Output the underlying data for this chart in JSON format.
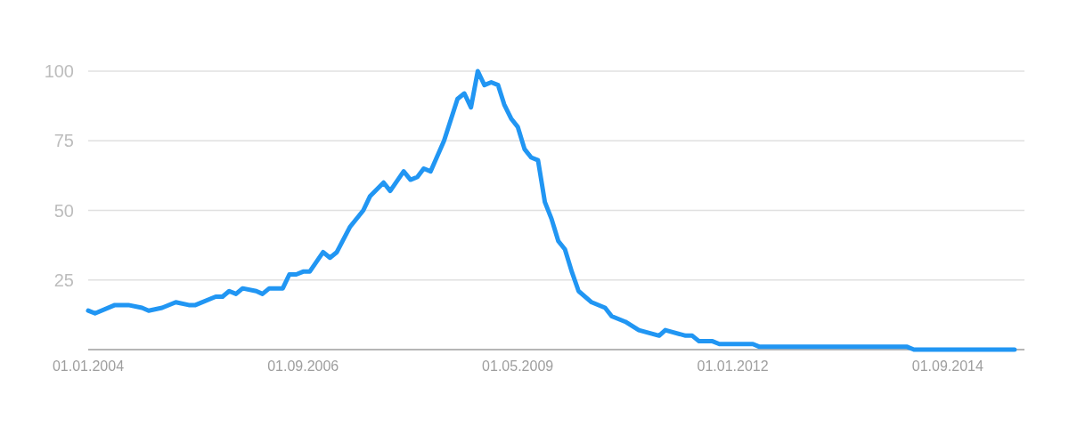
{
  "chart_data": {
    "type": "line",
    "x": [
      "2004-01",
      "2004-02",
      "2004-05",
      "2004-07",
      "2004-09",
      "2004-10",
      "2004-12",
      "2005-02",
      "2005-04",
      "2005-05",
      "2005-08",
      "2005-09",
      "2005-10",
      "2005-11",
      "2005-12",
      "2006-02",
      "2006-03",
      "2006-04",
      "2006-06",
      "2006-07",
      "2006-08",
      "2006-09",
      "2006-10",
      "2006-12",
      "2007-01",
      "2007-02",
      "2007-04",
      "2007-06",
      "2007-07",
      "2007-09",
      "2007-10",
      "2007-12",
      "2008-01",
      "2008-02",
      "2008-03",
      "2008-04",
      "2008-06",
      "2008-08",
      "2008-09",
      "2008-10",
      "2008-11",
      "2008-12",
      "2009-01",
      "2009-02",
      "2009-03",
      "2009-04",
      "2009-05",
      "2009-06",
      "2009-07",
      "2009-08",
      "2009-09",
      "2009-10",
      "2009-11",
      "2009-12",
      "2010-01",
      "2010-02",
      "2010-04",
      "2010-06",
      "2010-07",
      "2010-09",
      "2010-11",
      "2011-02",
      "2011-03",
      "2011-06",
      "2011-07",
      "2011-08",
      "2011-10",
      "2011-11",
      "2012-04",
      "2012-05",
      "2014-03",
      "2014-04",
      "2015-07"
    ],
    "series": [
      {
        "color": "#2196f3",
        "values": [
          14,
          13,
          16,
          16,
          15,
          14,
          15,
          17,
          16,
          16,
          19,
          19,
          21,
          20,
          22,
          21,
          20,
          22,
          22,
          27,
          27,
          28,
          28,
          35,
          33,
          35,
          44,
          50,
          55,
          60,
          57,
          64,
          61,
          62,
          65,
          64,
          75,
          90,
          92,
          87,
          100,
          95,
          96,
          95,
          88,
          83,
          80,
          72,
          69,
          68,
          53,
          47,
          39,
          36,
          28,
          21,
          17,
          15,
          12,
          10,
          7,
          5,
          7,
          5,
          5,
          3,
          3,
          2,
          2,
          1,
          1,
          0,
          0
        ]
      }
    ],
    "xlim": [
      "2004-01",
      "2015-08-15"
    ],
    "xticks": [
      {
        "value": "2004-01-01",
        "label": "01.01.2004"
      },
      {
        "value": "2006-09-01",
        "label": "01.09.2006"
      },
      {
        "value": "2009-05-01",
        "label": "01.05.2009"
      },
      {
        "value": "2012-01-01",
        "label": "01.01.2012"
      },
      {
        "value": "2014-09-01",
        "label": "01.09.2014"
      }
    ],
    "ylim": [
      0,
      100
    ],
    "yticks": [
      25,
      50,
      75,
      100
    ],
    "grid": "y",
    "marker": "none",
    "line_style": "solid"
  }
}
